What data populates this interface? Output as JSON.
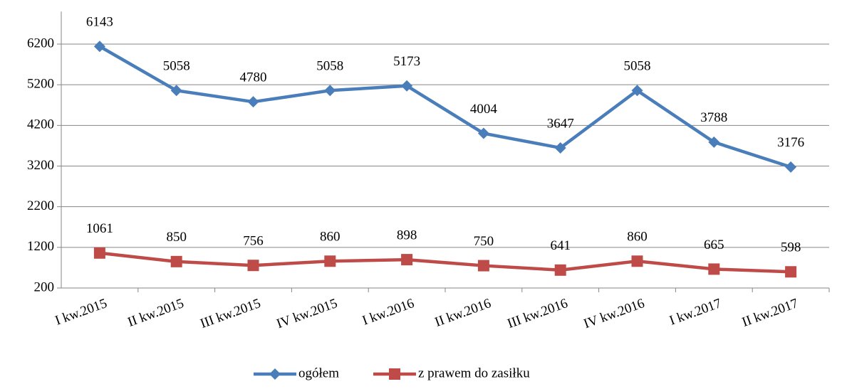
{
  "chart_data": {
    "type": "line",
    "categories": [
      "I kw.2015",
      "II kw.2015",
      "III kw.2015",
      "IV kw.2015",
      "I kw.2016",
      "II kw.2016",
      "III kw.2016",
      "IV kw.2016",
      "I kw.2017",
      "II kw.2017"
    ],
    "series": [
      {
        "name": "ogółem",
        "color": "#4a7ebb",
        "marker": "diamond",
        "values": [
          6143,
          5058,
          4780,
          5058,
          5173,
          4004,
          3647,
          5058,
          3788,
          3176
        ]
      },
      {
        "name": "z prawem do zasiłku",
        "color": "#be4b48",
        "marker": "square",
        "values": [
          1061,
          850,
          756,
          860,
          898,
          750,
          641,
          860,
          665,
          598
        ]
      }
    ],
    "ylim": [
      200,
      7000
    ],
    "yticks": [
      200,
      1200,
      2200,
      3200,
      4200,
      5200,
      6200
    ],
    "grid": true,
    "legend": "bottom"
  }
}
